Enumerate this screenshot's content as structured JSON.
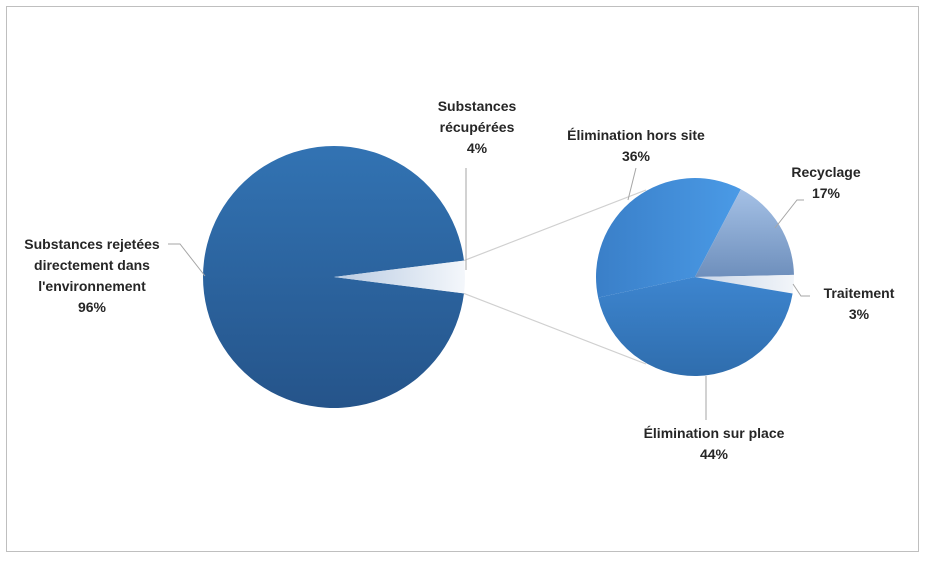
{
  "chart_data": {
    "type": "pie",
    "subtype": "pie-of-pie",
    "title": "",
    "main_pie": {
      "slices": [
        {
          "label_lines": [
            "Substances rejetées",
            "directement dans",
            "l'environnement"
          ],
          "value": 96,
          "value_label": "96%",
          "color": "#2e6aa6"
        },
        {
          "label_lines": [
            "Substances",
            "récupérées"
          ],
          "value": 4,
          "value_label": "4%",
          "color": "#e3e9f2"
        }
      ]
    },
    "secondary_pie": {
      "slices": [
        {
          "label_lines": [
            "Élimination hors site"
          ],
          "value": 36,
          "value_label": "36%",
          "color": "#4191d9"
        },
        {
          "label_lines": [
            "Recyclage"
          ],
          "value": 17,
          "value_label": "17%",
          "color": "#8fb1db"
        },
        {
          "label_lines": [
            "Traitement"
          ],
          "value": 3,
          "value_label": "3%",
          "color": "#e8edf4"
        },
        {
          "label_lines": [
            "Élimination sur place"
          ],
          "value": 44,
          "value_label": "44%",
          "color": "#3a7bc4"
        }
      ]
    },
    "legend": "none"
  }
}
